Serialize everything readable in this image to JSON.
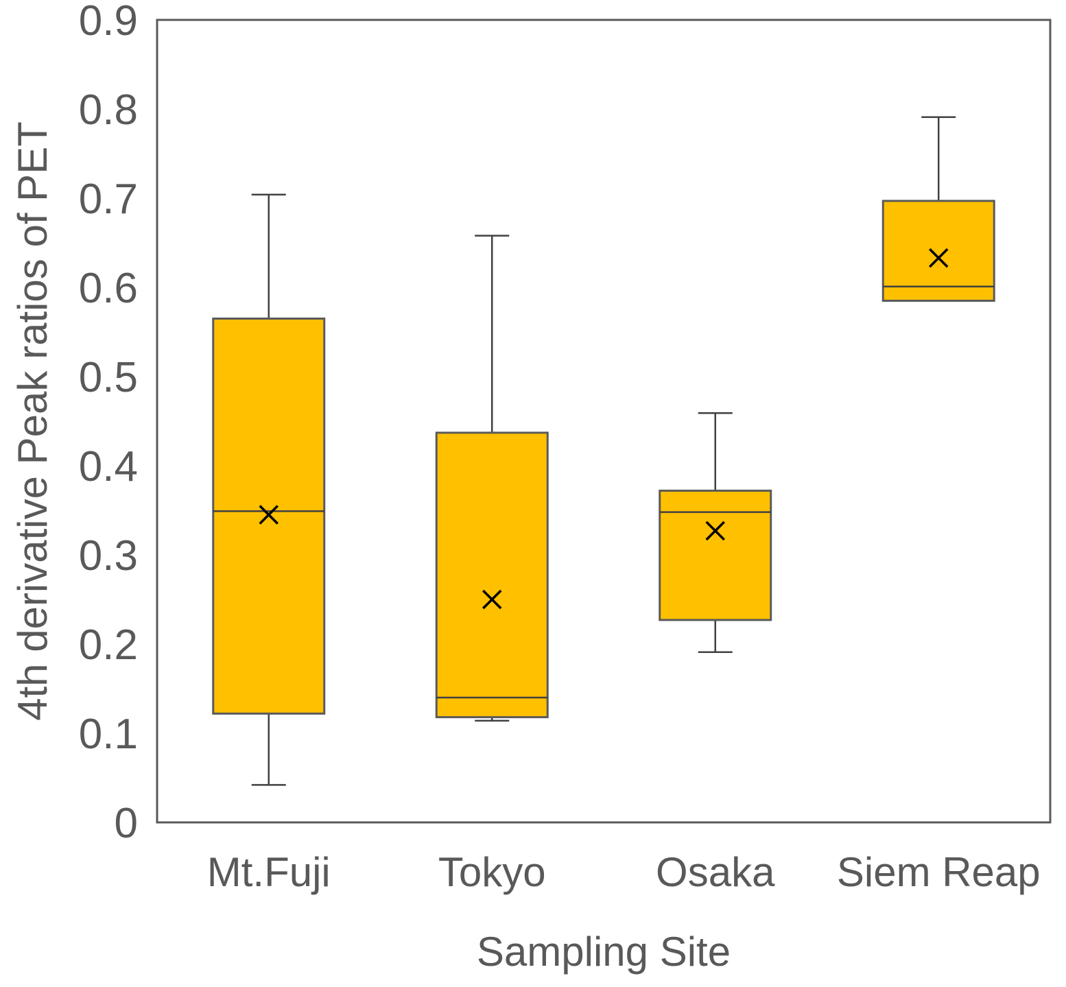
{
  "chart_data": {
    "type": "box",
    "title": "",
    "xlabel": "Sampling Site",
    "ylabel": "4th derivative Peak ratios of PET",
    "ylim": [
      0,
      0.9
    ],
    "yticks": [
      0,
      0.1,
      0.2,
      0.3,
      0.4,
      0.5,
      0.6,
      0.7,
      0.8,
      0.9
    ],
    "ytick_labels": [
      "0",
      "0.1",
      "0.2",
      "0.3",
      "0.4",
      "0.5",
      "0.6",
      "0.7",
      "0.8",
      "0.9"
    ],
    "grid": false,
    "categories": [
      "Mt.Fuji",
      "Tokyo",
      "Osaka",
      "Siem Reap"
    ],
    "boxes": [
      {
        "name": "Mt.Fuji",
        "min": 0.042,
        "q1": 0.122,
        "median": 0.349,
        "q3": 0.565,
        "max": 0.704,
        "mean": 0.345
      },
      {
        "name": "Tokyo",
        "min": 0.114,
        "q1": 0.118,
        "median": 0.14,
        "q3": 0.437,
        "max": 0.658,
        "mean": 0.25
      },
      {
        "name": "Osaka",
        "min": 0.191,
        "q1": 0.227,
        "median": 0.348,
        "q3": 0.372,
        "max": 0.459,
        "mean": 0.327
      },
      {
        "name": "Siem Reap",
        "min": 0.585,
        "q1": 0.585,
        "median": 0.601,
        "q3": 0.697,
        "max": 0.791,
        "mean": 0.633
      }
    ],
    "colors": {
      "box_fill": "#FFC000",
      "box_stroke": "#5a5a5a",
      "whisker": "#404040",
      "median": "#404040",
      "mean_marker": "#000000",
      "axis_frame": "#595959",
      "text": "#595959"
    }
  }
}
